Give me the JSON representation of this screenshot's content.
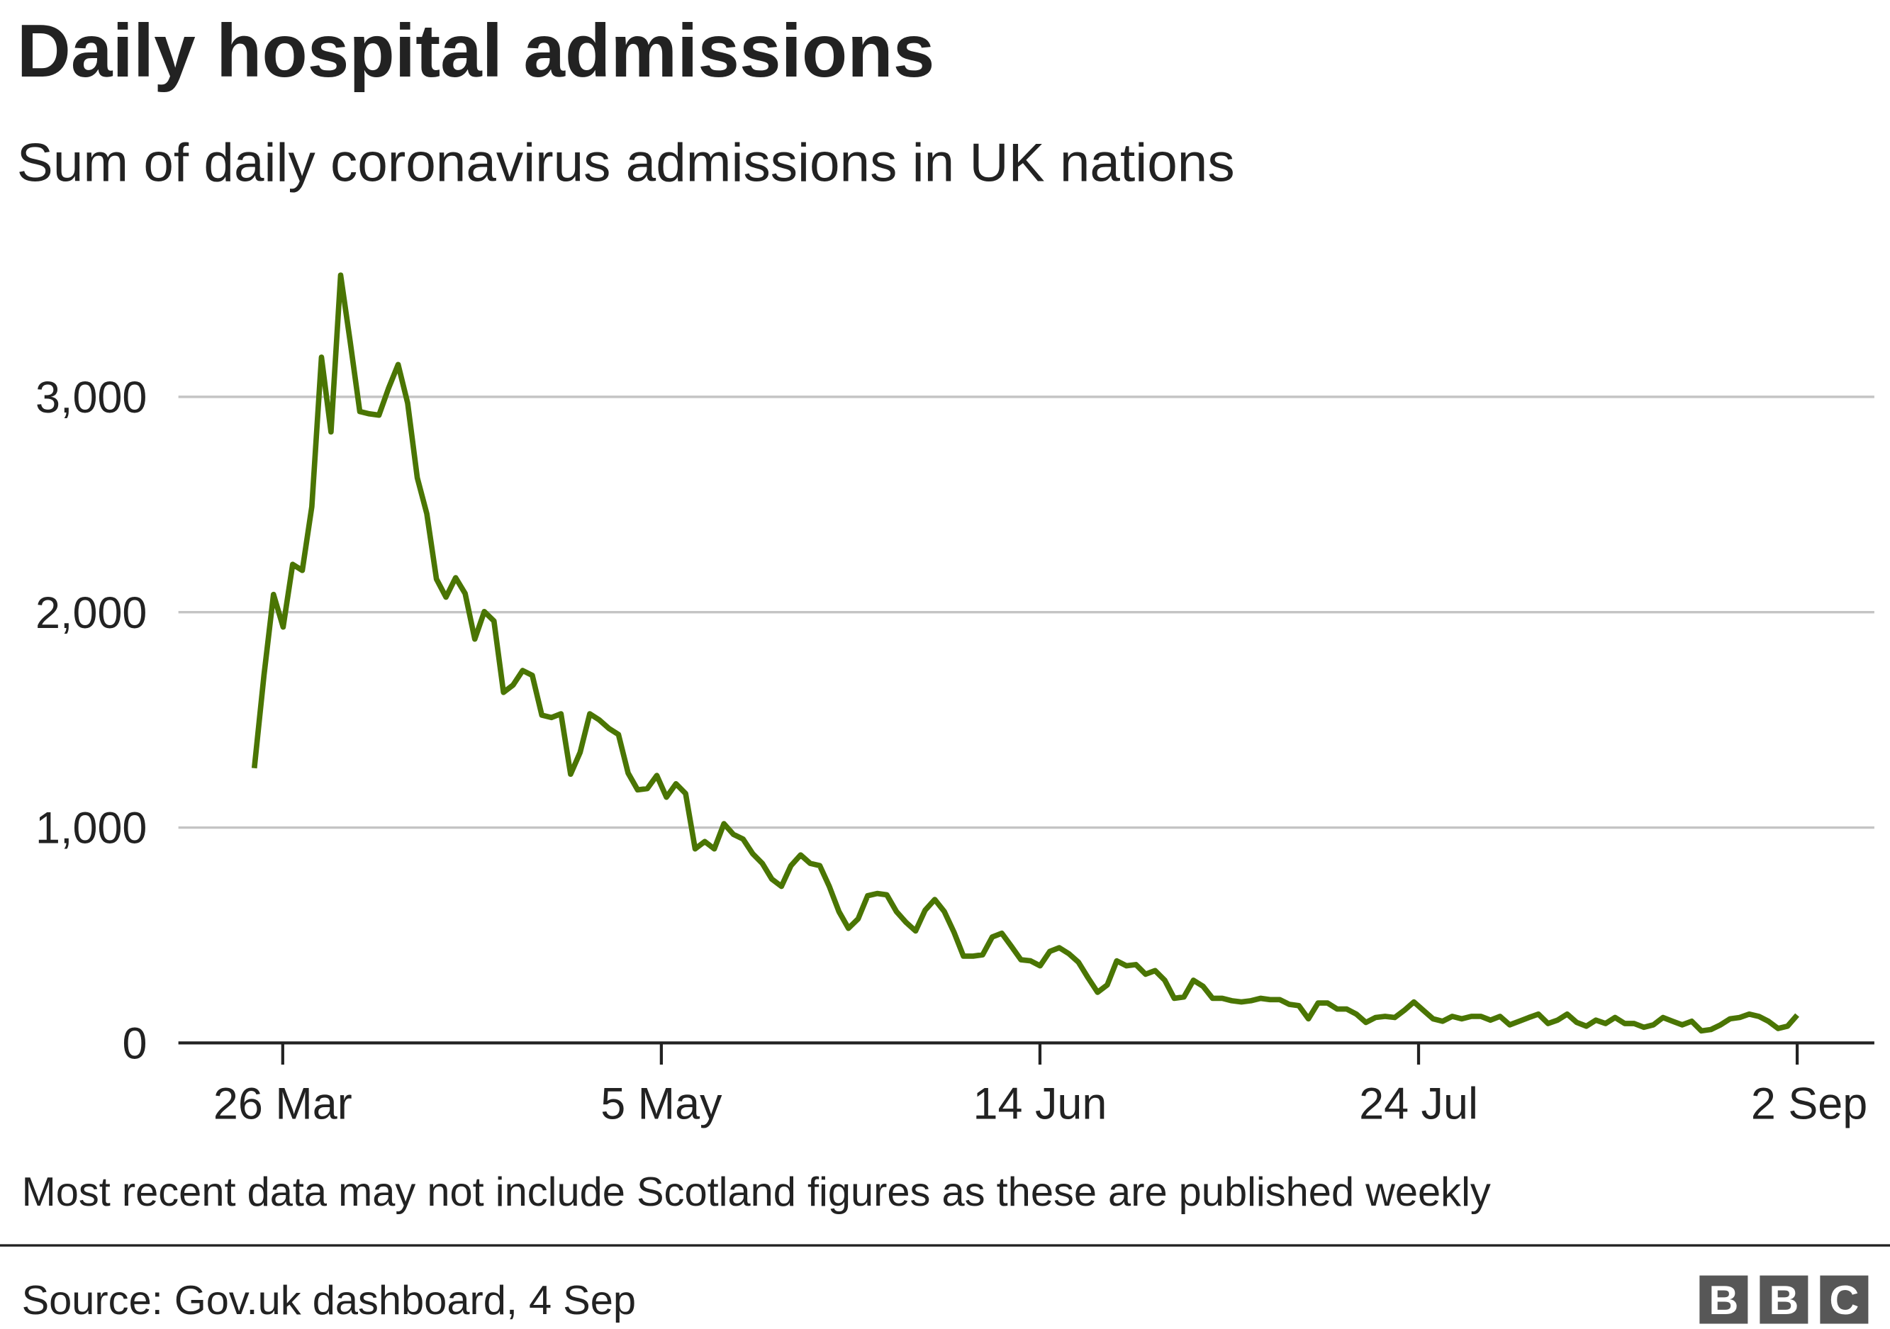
{
  "chart_data": {
    "type": "line",
    "title": "Daily hospital admissions",
    "subtitle": "Sum of daily coronavirus admissions in UK nations",
    "xlabel": "",
    "ylabel": "",
    "first_date": "23 Mar",
    "last_date": "2 Sep",
    "x_tick_labels": [
      "26 Mar",
      "5 May",
      "14 Jun",
      "24 Jul",
      "2 Sep"
    ],
    "y_ticks": [
      0,
      1000,
      2000,
      3000
    ],
    "y_tick_labels": [
      "0",
      "1,000",
      "2,000",
      "3,000"
    ],
    "ylim": [
      0,
      3700
    ],
    "grid": true,
    "line_color": "#4a7503",
    "values": [
      1276,
      1707,
      2082,
      1931,
      2222,
      2194,
      2490,
      3184,
      2837,
      3565,
      3257,
      2932,
      2921,
      2915,
      3039,
      3150,
      2971,
      2624,
      2457,
      2154,
      2070,
      2160,
      2087,
      1875,
      2003,
      1959,
      1628,
      1662,
      1729,
      1707,
      1522,
      1511,
      1528,
      1248,
      1349,
      1528,
      1500,
      1460,
      1432,
      1253,
      1175,
      1181,
      1242,
      1141,
      1203,
      1158,
      901,
      935,
      901,
      1018,
      968,
      946,
      879,
      834,
      761,
      727,
      823,
      873,
      834,
      823,
      727,
      610,
      532,
      576,
      683,
      694,
      688,
      610,
      560,
      520,
      616,
      666,
      610,
      515,
      403,
      403,
      409,
      492,
      509,
      448,
      386,
      381,
      358,
      425,
      442,
      414,
      375,
      302,
      235,
      269,
      381,
      358,
      364,
      319,
      336,
      291,
      207,
      213,
      291,
      263,
      207,
      207,
      196,
      190,
      196,
      207,
      201,
      201,
      179,
      173,
      112,
      185,
      185,
      157,
      157,
      134,
      95,
      118,
      123,
      118,
      151,
      190,
      151,
      112,
      101,
      123,
      112,
      123,
      123,
      106,
      123,
      84,
      101,
      118,
      134,
      90,
      106,
      134,
      95,
      78,
      106,
      90,
      118,
      90,
      90,
      73,
      84,
      118,
      101,
      84,
      101,
      56,
      62,
      84,
      112,
      118,
      134,
      123,
      101,
      67,
      78,
      129
    ]
  },
  "footnote": "Most recent data may not include Scotland figures as these are published weekly",
  "source": "Source: Gov.uk dashboard, 4 Sep",
  "logo": {
    "letters": [
      "B",
      "B",
      "C"
    ]
  }
}
